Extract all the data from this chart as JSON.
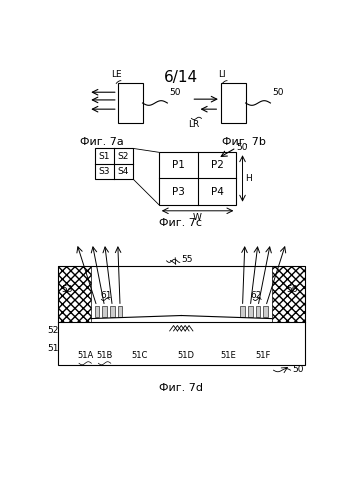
{
  "title": "6/14",
  "bg_color": "#ffffff",
  "fig7a_label": "Фиг. 7а",
  "fig7b_label": "Фиг. 7b",
  "fig7c_label": "Фиг. 7с",
  "fig7d_label": "Фиг. 7d"
}
